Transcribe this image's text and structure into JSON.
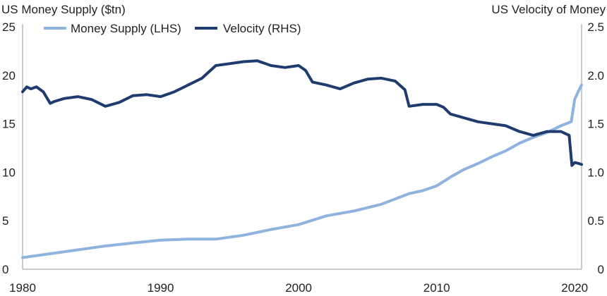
{
  "chart_data": {
    "type": "line",
    "left_axis_title": "US Money Supply ($tn)",
    "right_axis_title": "US Velocity of Money",
    "x_ticks": [
      "1980",
      "1990",
      "2000",
      "2010",
      "2020"
    ],
    "y_left_ticks": [
      "0",
      "5",
      "10",
      "15",
      "20",
      "25"
    ],
    "y_right_ticks": [
      "0",
      "0.5",
      "1.0",
      "1.5",
      "2.0",
      "2.5"
    ],
    "x_range": [
      1980,
      2020.5
    ],
    "y_left_range": [
      0,
      25
    ],
    "y_right_range": [
      0,
      2.5
    ],
    "legend_placement": "top-left",
    "series": [
      {
        "name": "Money Supply (LHS)",
        "axis": "left",
        "color": "#8fb3df",
        "x": [
          1980,
          1982,
          1984,
          1986,
          1988,
          1990,
          1992,
          1994,
          1996,
          1998,
          2000,
          2002,
          2004,
          2006,
          2008,
          2009,
          2010,
          2011,
          2012,
          2013,
          2014,
          2015,
          2016,
          2017,
          2018,
          2019,
          2019.75,
          2020,
          2020.25,
          2020.5
        ],
        "values": [
          1.2,
          1.6,
          2.0,
          2.4,
          2.7,
          3.0,
          3.1,
          3.1,
          3.5,
          4.1,
          4.6,
          5.5,
          6.0,
          6.7,
          7.8,
          8.1,
          8.6,
          9.5,
          10.3,
          10.9,
          11.6,
          12.2,
          13.0,
          13.6,
          14.1,
          14.8,
          15.2,
          17.5,
          18.3,
          19.0
        ]
      },
      {
        "name": "Velocity (RHS)",
        "axis": "right",
        "color": "#1f3c6e",
        "x": [
          1980,
          1980.3,
          1980.6,
          1981,
          1981.5,
          1982,
          1982.3,
          1983,
          1984,
          1985,
          1986,
          1987,
          1988,
          1989,
          1990,
          1991,
          1992,
          1993,
          1994,
          1995,
          1996,
          1997,
          1998,
          1999,
          2000,
          2000.5,
          2001,
          2002,
          2003,
          2004,
          2005,
          2006,
          2007,
          2007.7,
          2008,
          2009,
          2010,
          2010.5,
          2011,
          2012,
          2013,
          2014,
          2015,
          2016,
          2017,
          2018,
          2019,
          2019.6,
          2019.8,
          2020,
          2020.3,
          2020.5
        ],
        "values": [
          1.83,
          1.88,
          1.86,
          1.88,
          1.83,
          1.71,
          1.73,
          1.76,
          1.78,
          1.75,
          1.68,
          1.72,
          1.79,
          1.8,
          1.78,
          1.83,
          1.9,
          1.97,
          2.1,
          2.12,
          2.14,
          2.15,
          2.1,
          2.08,
          2.1,
          2.05,
          1.93,
          1.9,
          1.86,
          1.92,
          1.96,
          1.97,
          1.94,
          1.85,
          1.68,
          1.7,
          1.7,
          1.67,
          1.6,
          1.56,
          1.52,
          1.5,
          1.48,
          1.42,
          1.38,
          1.42,
          1.42,
          1.38,
          1.07,
          1.1,
          1.09,
          1.08
        ]
      }
    ]
  }
}
